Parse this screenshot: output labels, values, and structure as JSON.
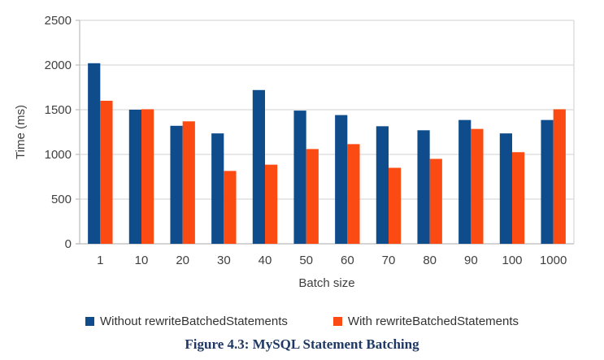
{
  "figure": {
    "caption": "Figure 4.3: MySQL Statement Batching"
  },
  "chart_data": {
    "type": "bar",
    "title": "",
    "xlabel": "Batch size",
    "ylabel": "Time (ms)",
    "categories": [
      "1",
      "10",
      "20",
      "30",
      "40",
      "50",
      "60",
      "70",
      "80",
      "90",
      "100",
      "1000"
    ],
    "series": [
      {
        "name": "Without rewriteBatchedStatements",
        "color": "#0e4c8c",
        "values": [
          2020,
          1500,
          1320,
          1235,
          1720,
          1490,
          1440,
          1315,
          1270,
          1385,
          1235,
          1385
        ]
      },
      {
        "name": "With rewriteBatchedStatements",
        "color": "#fc4b12",
        "values": [
          1600,
          1505,
          1370,
          815,
          885,
          1060,
          1115,
          850,
          950,
          1285,
          1025,
          1505
        ]
      }
    ],
    "ylim": [
      0,
      2500
    ],
    "ytick_step": 500,
    "grid": true,
    "legend_position": "bottom",
    "colors": {
      "gridline": "#d9d9d9",
      "axis_line": "#bfbfbf",
      "axis_text": "#404040"
    }
  }
}
